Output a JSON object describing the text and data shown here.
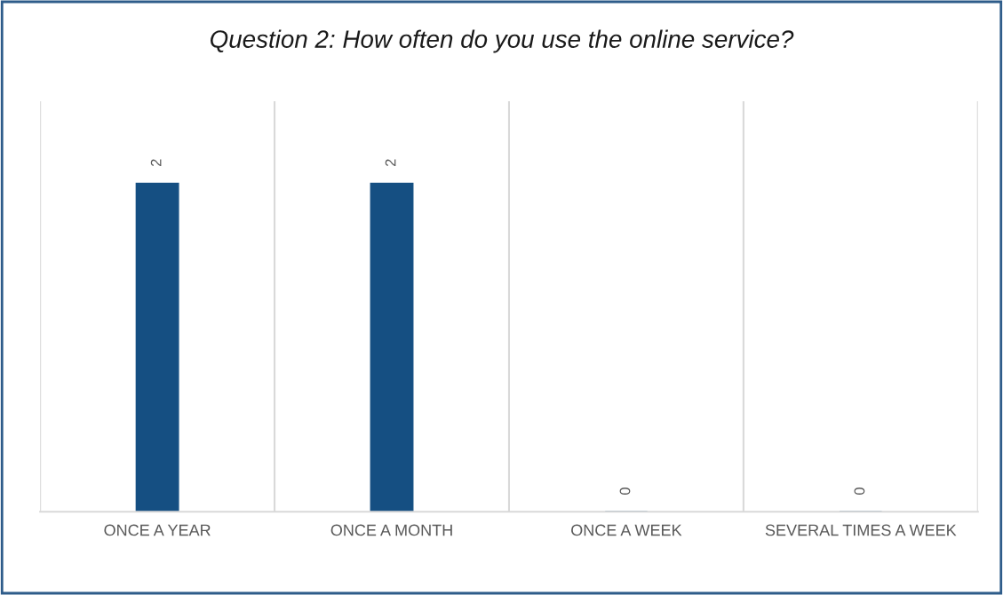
{
  "chart_data": {
    "type": "bar",
    "title": "Question 2: How often do you use the online service?",
    "categories": [
      "ONCE A YEAR",
      "ONCE A MONTH",
      "ONCE A WEEK",
      "SEVERAL TIMES A WEEK"
    ],
    "values": [
      2,
      2,
      0,
      0
    ],
    "color": "#154f82",
    "data_labels": true,
    "grid": "x"
  }
}
